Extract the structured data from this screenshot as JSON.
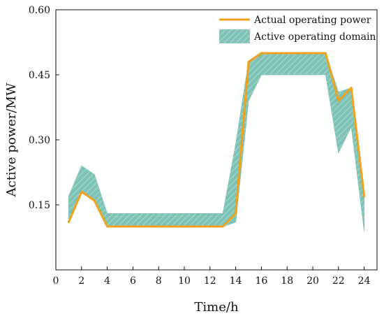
{
  "chart_data": {
    "type": "line",
    "xlabel": "Time/h",
    "ylabel": "Active power/MW",
    "xlim": [
      0,
      25
    ],
    "ylim": [
      0,
      0.6
    ],
    "xticks": [
      0,
      2,
      4,
      6,
      8,
      10,
      12,
      14,
      16,
      18,
      20,
      22,
      24
    ],
    "yticks": [
      0.15,
      0.3,
      0.45,
      0.6
    ],
    "ytick_labels": [
      "0.15",
      "0.30",
      "0.45",
      "0.60"
    ],
    "grid": false,
    "legend_position": "top-right",
    "x": [
      1,
      2,
      3,
      4,
      5,
      6,
      7,
      8,
      9,
      10,
      11,
      12,
      13,
      14,
      15,
      16,
      17,
      18,
      19,
      20,
      21,
      22,
      23,
      24
    ],
    "series": [
      {
        "name": "Actual operating power",
        "kind": "line",
        "color": "#F0A21C",
        "values": [
          0.11,
          0.18,
          0.16,
          0.1,
          0.1,
          0.1,
          0.1,
          0.1,
          0.1,
          0.1,
          0.1,
          0.1,
          0.1,
          0.13,
          0.48,
          0.5,
          0.5,
          0.5,
          0.5,
          0.5,
          0.5,
          0.39,
          0.42,
          0.17
        ]
      },
      {
        "name": "Active operating domain",
        "kind": "band",
        "color": "#7EC3B6",
        "upper": [
          0.17,
          0.24,
          0.22,
          0.13,
          0.13,
          0.13,
          0.13,
          0.13,
          0.13,
          0.13,
          0.13,
          0.13,
          0.13,
          0.29,
          0.48,
          0.5,
          0.5,
          0.5,
          0.5,
          0.5,
          0.5,
          0.41,
          0.42,
          0.17
        ],
        "lower": [
          0.11,
          0.18,
          0.16,
          0.1,
          0.1,
          0.1,
          0.1,
          0.1,
          0.1,
          0.1,
          0.1,
          0.1,
          0.1,
          0.11,
          0.39,
          0.45,
          0.45,
          0.45,
          0.45,
          0.45,
          0.45,
          0.27,
          0.33,
          0.09
        ]
      }
    ]
  }
}
